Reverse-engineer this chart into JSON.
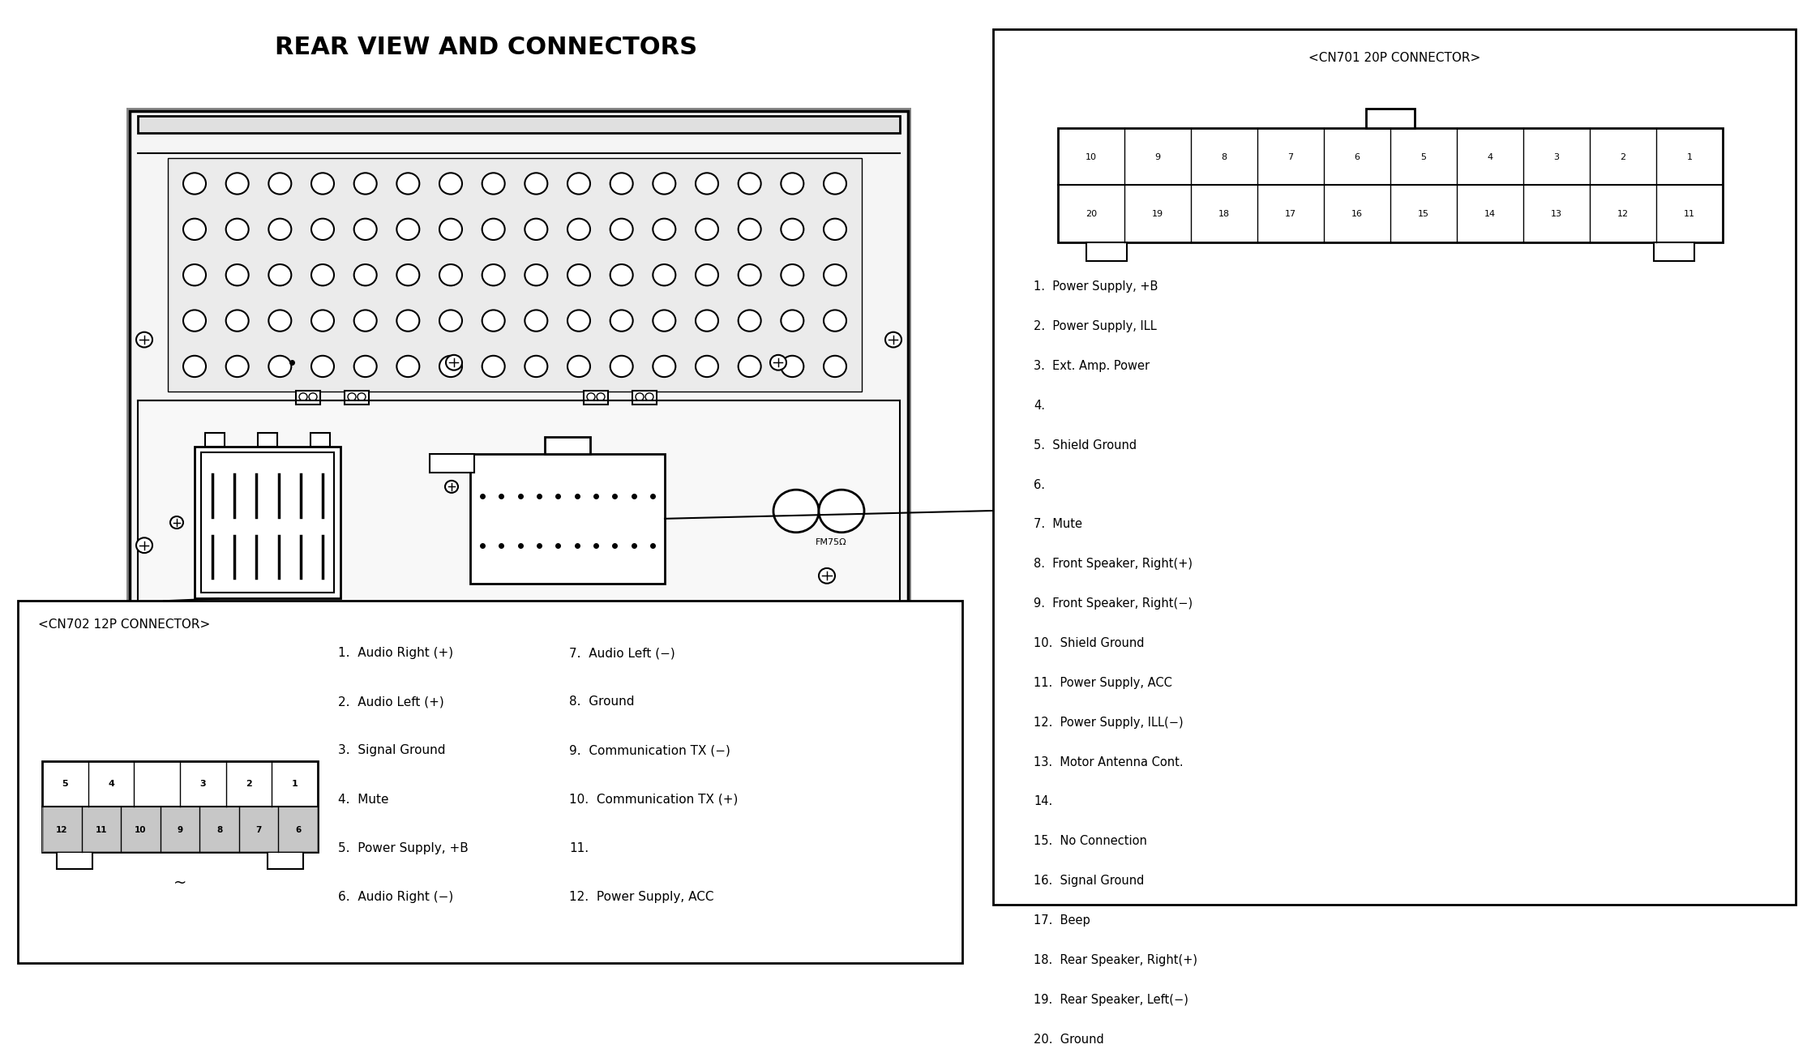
{
  "title": "REAR VIEW AND CONNECTORS",
  "title_fontsize": 22,
  "bg_color": "#ffffff",
  "cn701_title": "<CN701 20P CONNECTOR>",
  "cn701_row1": [
    "10",
    "9",
    "8",
    "7",
    "6",
    "5",
    "4",
    "3",
    "2",
    "1"
  ],
  "cn701_row2": [
    "20",
    "19",
    "18",
    "17",
    "16",
    "15",
    "14",
    "13",
    "12",
    "11"
  ],
  "cn701_pins": [
    "1.  Power Supply, +B",
    "2.  Power Supply, ILL",
    "3.  Ext. Amp. Power",
    "4.",
    "5.  Shield Ground",
    "6.",
    "7.  Mute",
    "8.  Front Speaker, Right(+)",
    "9.  Front Speaker, Right(−)",
    "10.  Shield Ground",
    "11.  Power Supply, ACC",
    "12.  Power Supply, ILL(−)",
    "13.  Motor Antenna Cont.",
    "14.",
    "15.  No Connection",
    "16.  Signal Ground",
    "17.  Beep",
    "18.  Rear Speaker, Right(+)",
    "19.  Rear Speaker, Left(−)",
    "20.  Ground"
  ],
  "cn702_title": "<CN702 12P CONNECTOR>",
  "cn702_pins_col1": [
    "1.  Audio Right (+)",
    "2.  Audio Left (+)",
    "3.  Signal Ground",
    "4.  Mute",
    "5.  Power Supply, +B",
    "6.  Audio Right (−)"
  ],
  "cn702_pins_col2": [
    "7.  Audio Left (−)",
    "8.  Ground",
    "9.  Communication TX (−)",
    "10.  Communication TX (+)",
    "11.",
    "12.  Power Supply, ACC"
  ],
  "line_color": "#000000",
  "text_color": "#000000"
}
